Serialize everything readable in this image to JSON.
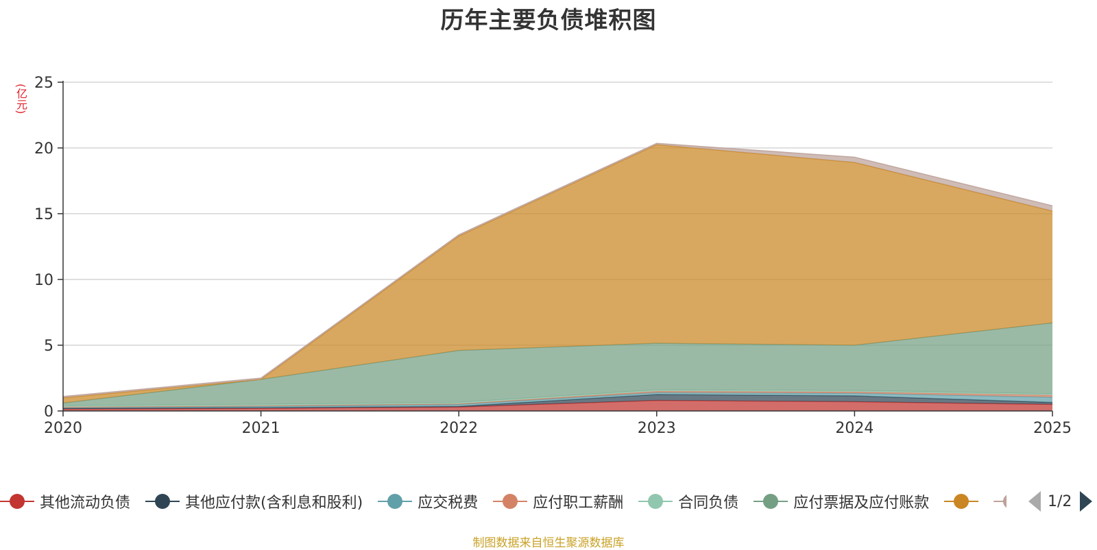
{
  "chart_data": {
    "type": "area",
    "stacked": true,
    "title": "历年主要负债堆积图",
    "ylabel": "(亿元)",
    "categories": [
      "2020",
      "2021",
      "2022",
      "2023",
      "2024",
      "2025"
    ],
    "ylim": [
      0,
      25
    ],
    "yticks": [
      0,
      5,
      10,
      15,
      20,
      25
    ],
    "grid": true,
    "series": [
      {
        "name": "其他流动负债",
        "color": "#c23531",
        "values": [
          0.15,
          0.2,
          0.3,
          0.8,
          0.7,
          0.5
        ]
      },
      {
        "name": "其他应付款(含利息和股利)",
        "color": "#2f4554",
        "values": [
          0.05,
          0.05,
          0.05,
          0.45,
          0.45,
          0.15
        ]
      },
      {
        "name": "应交税费",
        "color": "#61a0a8",
        "values": [
          0.05,
          0.1,
          0.15,
          0.15,
          0.2,
          0.4
        ]
      },
      {
        "name": "应付职工薪酬",
        "color": "#d48265",
        "values": [
          0.05,
          0.05,
          0.05,
          0.1,
          0.1,
          0.15
        ]
      },
      {
        "name": "合同负债",
        "color": "#91c7ae",
        "values": [
          0.1,
          0.1,
          0.1,
          0.1,
          0.1,
          0.1
        ]
      },
      {
        "name": "应付票据及应付账款",
        "color": "#749f83",
        "values": [
          0.2,
          1.9,
          3.95,
          3.55,
          3.45,
          5.4
        ]
      },
      {
        "name": "",
        "color": "#ca8622",
        "values": [
          0.4,
          0.0,
          8.7,
          15.1,
          13.9,
          8.5
        ]
      },
      {
        "name": "",
        "color": "#bda29a",
        "values": [
          0.1,
          0.1,
          0.1,
          0.1,
          0.4,
          0.4
        ]
      }
    ]
  },
  "legend": {
    "page": "1/2"
  },
  "footer": {
    "source": "制图数据来自恒生聚源数据库"
  }
}
